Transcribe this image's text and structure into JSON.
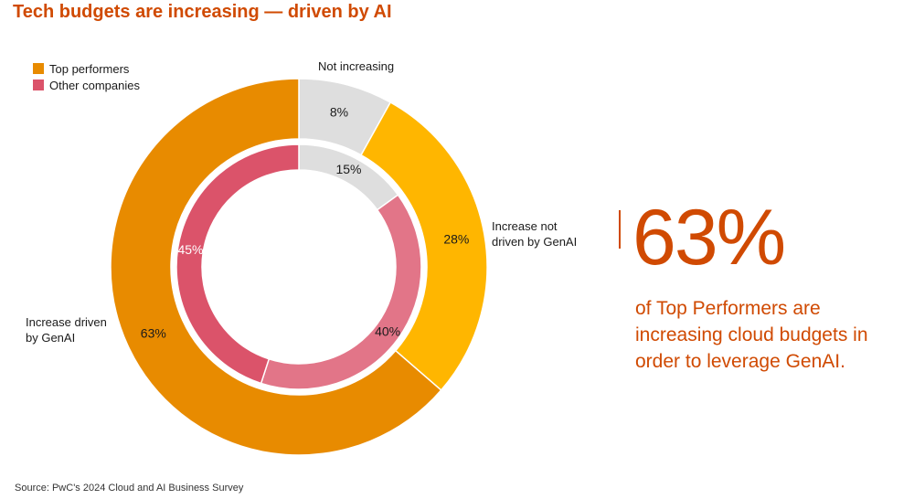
{
  "title": "Tech budgets are increasing — driven by AI",
  "callout": {
    "value": "63%",
    "text": "of Top Performers are increasing cloud budgets in order to leverage GenAI."
  },
  "source": "Source: PwC's 2024 Cloud and AI Business Survey",
  "colors": {
    "accent": "#d04a02",
    "outer_driven": "#e88b00",
    "outer_not_driven": "#ffb600",
    "not_increasing": "#dedede",
    "inner_driven": "#db536a",
    "inner_not_driven": "#e27588"
  },
  "chart_data": {
    "type": "pie",
    "variant": "nested-donut",
    "legend": [
      "Top performers",
      "Other companies"
    ],
    "legend_placement": "top-left",
    "categories": [
      "Not increasing",
      "Increase not driven by GenAI",
      "Increase driven by GenAI"
    ],
    "series": [
      {
        "name": "Top performers",
        "ring": "outer",
        "values": [
          8,
          28,
          63
        ],
        "labels": [
          "8%",
          "28%",
          "63%"
        ],
        "colors": [
          "#dedede",
          "#ffb600",
          "#e88b00"
        ]
      },
      {
        "name": "Other companies",
        "ring": "inner",
        "values": [
          15,
          40,
          45
        ],
        "labels": [
          "15%",
          "40%",
          "45%"
        ],
        "colors": [
          "#dedede",
          "#e27588",
          "#db536a"
        ]
      }
    ]
  }
}
